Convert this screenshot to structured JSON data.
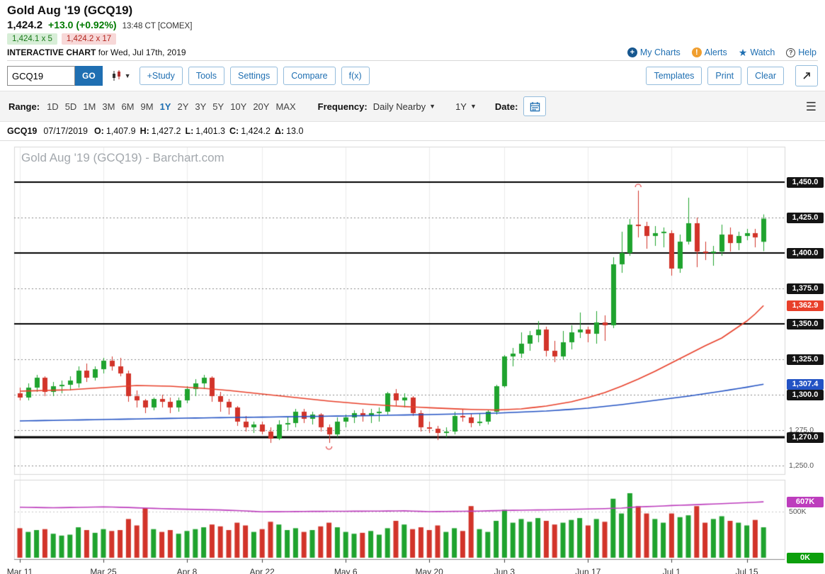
{
  "header": {
    "title": "Gold Aug '19 (GCQ19)",
    "last_price": "1,424.2",
    "change": "+13.0 (+0.92%)",
    "quote_time": "13:48 CT [COMEX]",
    "bid": "1,424.1 x 5",
    "ask": "1,424.2 x 17",
    "interactive_label": "INTERACTIVE CHART",
    "interactive_date": "for Wed, Jul 17th, 2019",
    "links": [
      {
        "label": "My Charts",
        "icon": "plus-circle-icon"
      },
      {
        "label": "Alerts",
        "icon": "alert-bell-icon"
      },
      {
        "label": "Watch",
        "icon": "star-icon"
      },
      {
        "label": "Help",
        "icon": "question-circle-icon"
      }
    ]
  },
  "toolbar": {
    "symbol_value": "GCQ19",
    "go_label": "GO",
    "left_buttons": [
      "+Study",
      "Tools",
      "Settings",
      "Compare",
      "f(x)"
    ],
    "right_buttons": [
      "Templates",
      "Print",
      "Clear"
    ]
  },
  "range_bar": {
    "range_label": "Range:",
    "ranges": [
      "1D",
      "5D",
      "1M",
      "3M",
      "6M",
      "9M",
      "1Y",
      "2Y",
      "3Y",
      "5Y",
      "10Y",
      "20Y",
      "MAX"
    ],
    "selected_range": "1Y",
    "frequency_label": "Frequency:",
    "frequency_value": "Daily Nearby",
    "period_value": "1Y",
    "date_label": "Date:"
  },
  "ohlc_bar": {
    "symbol": "GCQ19",
    "date": "07/17/2019",
    "fields": [
      {
        "label": "O:",
        "value": "1,407.9"
      },
      {
        "label": "H:",
        "value": "1,427.2"
      },
      {
        "label": "L:",
        "value": "1,401.3"
      },
      {
        "label": "C:",
        "value": "1,424.2"
      },
      {
        "label": "Δ:",
        "value": "13.0"
      }
    ]
  },
  "chart": {
    "watermark": "Gold Aug '19 (GCQ19) - Barchart.com",
    "colors": {
      "up": "#1fa32e",
      "down": "#d2342a",
      "red_line": "#e8402a",
      "blue_line": "#2353c4",
      "oi_line": "#bd3dbd",
      "vgrid": "#ececec",
      "grid_dashed": "#888",
      "grid_solid": "#000",
      "annotation": "#e03131"
    }
  },
  "chart_data": {
    "type": "candlestick",
    "title": "Gold Aug '19 (GCQ19) - Barchart.com",
    "price_range": [
      1244,
      1475
    ],
    "volume_range_k": [
      0,
      900
    ],
    "x_ticks": [
      {
        "label": "Mar 11",
        "index": 0
      },
      {
        "label": "Mar 25",
        "index": 10
      },
      {
        "label": "Apr 8",
        "index": 20
      },
      {
        "label": "Apr 22",
        "index": 29
      },
      {
        "label": "May 6",
        "index": 39
      },
      {
        "label": "May 20",
        "index": 49
      },
      {
        "label": "Jun 3",
        "index": 58
      },
      {
        "label": "Jun 17",
        "index": 68
      },
      {
        "label": "Jul 1",
        "index": 78
      },
      {
        "label": "Jul 15",
        "index": 87
      }
    ],
    "hlines_solid": [
      1450,
      1400,
      1350,
      1270
    ],
    "hlines_dashed": [
      1425,
      1375,
      1325,
      1300,
      1275,
      1250
    ],
    "price_axis_labels": [
      {
        "value": 1450.0,
        "label": "1,450.0",
        "type": "black"
      },
      {
        "value": 1425.0,
        "label": "1,425.0",
        "type": "black"
      },
      {
        "value": 1400.0,
        "label": "1,400.0",
        "type": "black"
      },
      {
        "value": 1375.0,
        "label": "1,375.0",
        "type": "black"
      },
      {
        "value": 1362.9,
        "label": "1,362.9",
        "type": "red"
      },
      {
        "value": 1350.0,
        "label": "1,350.0",
        "type": "black"
      },
      {
        "value": 1325.0,
        "label": "1,325.0",
        "type": "black"
      },
      {
        "value": 1307.4,
        "label": "1,307.4",
        "type": "blue"
      },
      {
        "value": 1300.0,
        "label": "1,300.0",
        "type": "black"
      },
      {
        "value": 1275.0,
        "label": "1,275.0",
        "type": "plain"
      },
      {
        "value": 1270.0,
        "label": "1,270.0",
        "type": "black"
      },
      {
        "value": 1250.0,
        "label": "1,250.0",
        "type": "plain"
      }
    ],
    "volume_axis_labels": [
      {
        "value": 607,
        "label": "607K",
        "type": "magenta"
      },
      {
        "value": 500,
        "label": "500K",
        "type": "plain"
      },
      {
        "value": 0,
        "label": "0K",
        "type": "green"
      }
    ],
    "candles": [
      [
        "2019-03-11",
        1301,
        1305,
        1296,
        1298,
        320
      ],
      [
        "2019-03-12",
        1298,
        1308,
        1296,
        1305,
        280
      ],
      [
        "2019-03-13",
        1305,
        1314,
        1302,
        1312,
        300
      ],
      [
        "2019-03-14",
        1312,
        1313,
        1299,
        1302,
        310
      ],
      [
        "2019-03-15",
        1302,
        1309,
        1299,
        1306,
        260
      ],
      [
        "2019-03-18",
        1306,
        1310,
        1301,
        1307,
        240
      ],
      [
        "2019-03-19",
        1307,
        1313,
        1303,
        1310,
        250
      ],
      [
        "2019-03-20",
        1308,
        1320,
        1305,
        1317,
        330
      ],
      [
        "2019-03-21",
        1317,
        1322,
        1309,
        1312,
        300
      ],
      [
        "2019-03-22",
        1312,
        1320,
        1310,
        1318,
        270
      ],
      [
        "2019-03-25",
        1318,
        1326,
        1315,
        1324,
        310
      ],
      [
        "2019-03-26",
        1324,
        1327,
        1317,
        1320,
        290
      ],
      [
        "2019-03-27",
        1320,
        1326,
        1313,
        1315,
        300
      ],
      [
        "2019-03-28",
        1315,
        1317,
        1295,
        1299,
        420
      ],
      [
        "2019-03-29",
        1299,
        1303,
        1291,
        1296,
        350
      ],
      [
        "2019-04-01",
        1296,
        1297,
        1287,
        1291,
        540
      ],
      [
        "2019-04-02",
        1291,
        1298,
        1289,
        1297,
        310
      ],
      [
        "2019-04-03",
        1297,
        1300,
        1291,
        1295,
        280
      ],
      [
        "2019-04-04",
        1295,
        1298,
        1287,
        1291,
        300
      ],
      [
        "2019-04-05",
        1291,
        1298,
        1288,
        1296,
        260
      ],
      [
        "2019-04-08",
        1296,
        1306,
        1294,
        1304,
        290
      ],
      [
        "2019-04-09",
        1304,
        1311,
        1299,
        1308,
        310
      ],
      [
        "2019-04-10",
        1308,
        1314,
        1304,
        1312,
        330
      ],
      [
        "2019-04-11",
        1312,
        1313,
        1295,
        1299,
        360
      ],
      [
        "2019-04-12",
        1299,
        1302,
        1288,
        1295,
        340
      ],
      [
        "2019-04-15",
        1295,
        1297,
        1286,
        1291,
        300
      ],
      [
        "2019-04-16",
        1291,
        1292,
        1278,
        1281,
        380
      ],
      [
        "2019-04-17",
        1281,
        1285,
        1274,
        1277,
        350
      ],
      [
        "2019-04-18",
        1277,
        1281,
        1273,
        1279,
        280
      ],
      [
        "2019-04-22",
        1279,
        1281,
        1272,
        1274,
        310
      ],
      [
        "2019-04-23",
        1274,
        1277,
        1266,
        1269,
        390
      ],
      [
        "2019-04-24",
        1269,
        1282,
        1268,
        1279,
        360
      ],
      [
        "2019-04-25",
        1279,
        1284,
        1275,
        1280,
        300
      ],
      [
        "2019-04-26",
        1280,
        1290,
        1277,
        1288,
        320
      ],
      [
        "2019-04-29",
        1288,
        1290,
        1280,
        1283,
        280
      ],
      [
        "2019-04-30",
        1283,
        1288,
        1279,
        1286,
        300
      ],
      [
        "2019-05-01",
        1286,
        1287,
        1274,
        1277,
        340
      ],
      [
        "2019-05-02",
        1277,
        1279,
        1266,
        1272,
        380
      ],
      [
        "2019-05-03",
        1272,
        1284,
        1270,
        1281,
        330
      ],
      [
        "2019-05-06",
        1281,
        1286,
        1277,
        1284,
        280
      ],
      [
        "2019-05-07",
        1284,
        1289,
        1280,
        1287,
        260
      ],
      [
        "2019-05-08",
        1287,
        1290,
        1281,
        1285,
        270
      ],
      [
        "2019-05-09",
        1285,
        1290,
        1280,
        1287,
        290
      ],
      [
        "2019-05-10",
        1287,
        1291,
        1281,
        1288,
        250
      ],
      [
        "2019-05-13",
        1288,
        1302,
        1286,
        1301,
        320
      ],
      [
        "2019-05-14",
        1301,
        1304,
        1292,
        1296,
        400
      ],
      [
        "2019-05-15",
        1296,
        1301,
        1291,
        1298,
        360
      ],
      [
        "2019-05-16",
        1298,
        1299,
        1285,
        1287,
        310
      ],
      [
        "2019-05-17",
        1287,
        1289,
        1274,
        1277,
        330
      ],
      [
        "2019-05-20",
        1277,
        1281,
        1273,
        1276,
        300
      ],
      [
        "2019-05-21",
        1276,
        1278,
        1268,
        1273,
        350
      ],
      [
        "2019-05-22",
        1273,
        1277,
        1270,
        1274,
        280
      ],
      [
        "2019-05-23",
        1274,
        1288,
        1272,
        1285,
        320
      ],
      [
        "2019-05-24",
        1285,
        1290,
        1281,
        1284,
        290
      ],
      [
        "2019-05-28",
        1284,
        1287,
        1277,
        1280,
        560
      ],
      [
        "2019-05-29",
        1280,
        1287,
        1278,
        1281,
        310
      ],
      [
        "2019-05-30",
        1281,
        1289,
        1279,
        1288,
        280
      ],
      [
        "2019-05-31",
        1288,
        1307,
        1286,
        1306,
        400
      ],
      [
        "2019-06-03",
        1306,
        1328,
        1305,
        1327,
        520
      ],
      [
        "2019-06-04",
        1327,
        1333,
        1320,
        1329,
        380
      ],
      [
        "2019-06-05",
        1329,
        1344,
        1326,
        1336,
        420
      ],
      [
        "2019-06-06",
        1336,
        1345,
        1331,
        1342,
        390
      ],
      [
        "2019-06-07",
        1342,
        1352,
        1337,
        1346,
        430
      ],
      [
        "2019-06-10",
        1346,
        1348,
        1327,
        1331,
        400
      ],
      [
        "2019-06-11",
        1331,
        1338,
        1323,
        1327,
        360
      ],
      [
        "2019-06-12",
        1327,
        1345,
        1325,
        1337,
        380
      ],
      [
        "2019-06-13",
        1337,
        1349,
        1332,
        1344,
        410
      ],
      [
        "2019-06-14",
        1344,
        1358,
        1340,
        1346,
        430
      ],
      [
        "2019-06-17",
        1346,
        1348,
        1337,
        1343,
        350
      ],
      [
        "2019-06-18",
        1343,
        1359,
        1336,
        1351,
        420
      ],
      [
        "2019-06-19",
        1351,
        1356,
        1338,
        1349,
        390
      ],
      [
        "2019-06-20",
        1349,
        1397,
        1347,
        1392,
        640
      ],
      [
        "2019-06-21",
        1392,
        1415,
        1386,
        1400,
        480
      ],
      [
        "2019-06-24",
        1400,
        1424,
        1398,
        1420,
        700
      ],
      [
        "2019-06-25",
        1420,
        1444,
        1411,
        1419,
        560
      ],
      [
        "2019-06-26",
        1419,
        1422,
        1403,
        1412,
        480
      ],
      [
        "2019-06-27",
        1412,
        1419,
        1405,
        1414,
        420
      ],
      [
        "2019-06-28",
        1414,
        1418,
        1404,
        1415,
        380
      ],
      [
        "2019-07-01",
        1414,
        1416,
        1384,
        1389,
        480
      ],
      [
        "2019-07-02",
        1389,
        1413,
        1386,
        1408,
        440
      ],
      [
        "2019-07-03",
        1408,
        1439,
        1406,
        1421,
        460
      ],
      [
        "2019-07-05",
        1421,
        1425,
        1390,
        1401,
        560
      ],
      [
        "2019-07-08",
        1401,
        1408,
        1395,
        1400,
        380
      ],
      [
        "2019-07-09",
        1400,
        1405,
        1391,
        1401,
        420
      ],
      [
        "2019-07-10",
        1401,
        1420,
        1398,
        1413,
        450
      ],
      [
        "2019-07-11",
        1413,
        1418,
        1401,
        1407,
        400
      ],
      [
        "2019-07-12",
        1407,
        1415,
        1402,
        1412,
        380
      ],
      [
        "2019-07-15",
        1412,
        1417,
        1409,
        1414,
        350
      ],
      [
        "2019-07-16",
        1414,
        1417,
        1404,
        1411,
        410
      ],
      [
        "2019-07-17",
        1407.9,
        1427.2,
        1401.3,
        1424.2,
        330
      ]
    ],
    "overlays": [
      {
        "name": "red-ma",
        "color": "#e8402a",
        "last_label": "1,362.9",
        "points": [
          [
            0,
            1302.5
          ],
          [
            6,
            1303.5
          ],
          [
            10,
            1305
          ],
          [
            14,
            1306.5
          ],
          [
            18,
            1306
          ],
          [
            22,
            1304.5
          ],
          [
            25,
            1303
          ],
          [
            29,
            1300.5
          ],
          [
            33,
            1298
          ],
          [
            37,
            1295.5
          ],
          [
            41,
            1293.5
          ],
          [
            45,
            1292
          ],
          [
            49,
            1290.8
          ],
          [
            53,
            1289.8
          ],
          [
            57,
            1289.2
          ],
          [
            60,
            1290
          ],
          [
            63,
            1292
          ],
          [
            66,
            1295
          ],
          [
            68,
            1298
          ],
          [
            70,
            1301.5
          ],
          [
            72,
            1306
          ],
          [
            74,
            1311
          ],
          [
            76,
            1316.5
          ],
          [
            78,
            1322.5
          ],
          [
            80,
            1328.5
          ],
          [
            82,
            1334.5
          ],
          [
            84,
            1340
          ],
          [
            86,
            1348
          ],
          [
            87,
            1352
          ],
          [
            88,
            1357
          ],
          [
            89,
            1362.9
          ]
        ]
      },
      {
        "name": "blue-ma",
        "color": "#2353c4",
        "last_label": "1,307.4",
        "points": [
          [
            0,
            1281.5
          ],
          [
            10,
            1282.5
          ],
          [
            20,
            1283.5
          ],
          [
            29,
            1284.2
          ],
          [
            39,
            1285
          ],
          [
            49,
            1286
          ],
          [
            57,
            1287
          ],
          [
            63,
            1288.5
          ],
          [
            68,
            1290.5
          ],
          [
            72,
            1293
          ],
          [
            76,
            1296
          ],
          [
            80,
            1299
          ],
          [
            84,
            1302.5
          ],
          [
            87,
            1305.3
          ],
          [
            89,
            1307.4
          ]
        ]
      }
    ],
    "volume_overlay": {
      "name": "open-interest-line",
      "color": "#bd3dbd",
      "last_label": "607K",
      "points": [
        [
          0,
          548
        ],
        [
          4,
          542
        ],
        [
          8,
          548
        ],
        [
          10,
          552
        ],
        [
          13,
          545
        ],
        [
          15,
          538
        ],
        [
          18,
          530
        ],
        [
          21,
          524
        ],
        [
          24,
          518
        ],
        [
          27,
          508
        ],
        [
          29,
          498
        ],
        [
          32,
          500
        ],
        [
          35,
          503
        ],
        [
          39,
          504
        ],
        [
          43,
          506
        ],
        [
          46,
          509
        ],
        [
          49,
          500
        ],
        [
          52,
          503
        ],
        [
          55,
          506
        ],
        [
          58,
          513
        ],
        [
          61,
          517
        ],
        [
          64,
          521
        ],
        [
          67,
          527
        ],
        [
          70,
          533
        ],
        [
          72,
          539
        ],
        [
          74,
          552
        ],
        [
          76,
          558
        ],
        [
          78,
          566
        ],
        [
          80,
          572
        ],
        [
          81,
          576
        ],
        [
          83,
          583
        ],
        [
          85,
          590
        ],
        [
          87,
          598
        ],
        [
          89,
          607
        ]
      ]
    },
    "annotations": [
      {
        "index": 74,
        "type": "arc-above"
      },
      {
        "index": 37,
        "type": "arc-below"
      }
    ]
  }
}
